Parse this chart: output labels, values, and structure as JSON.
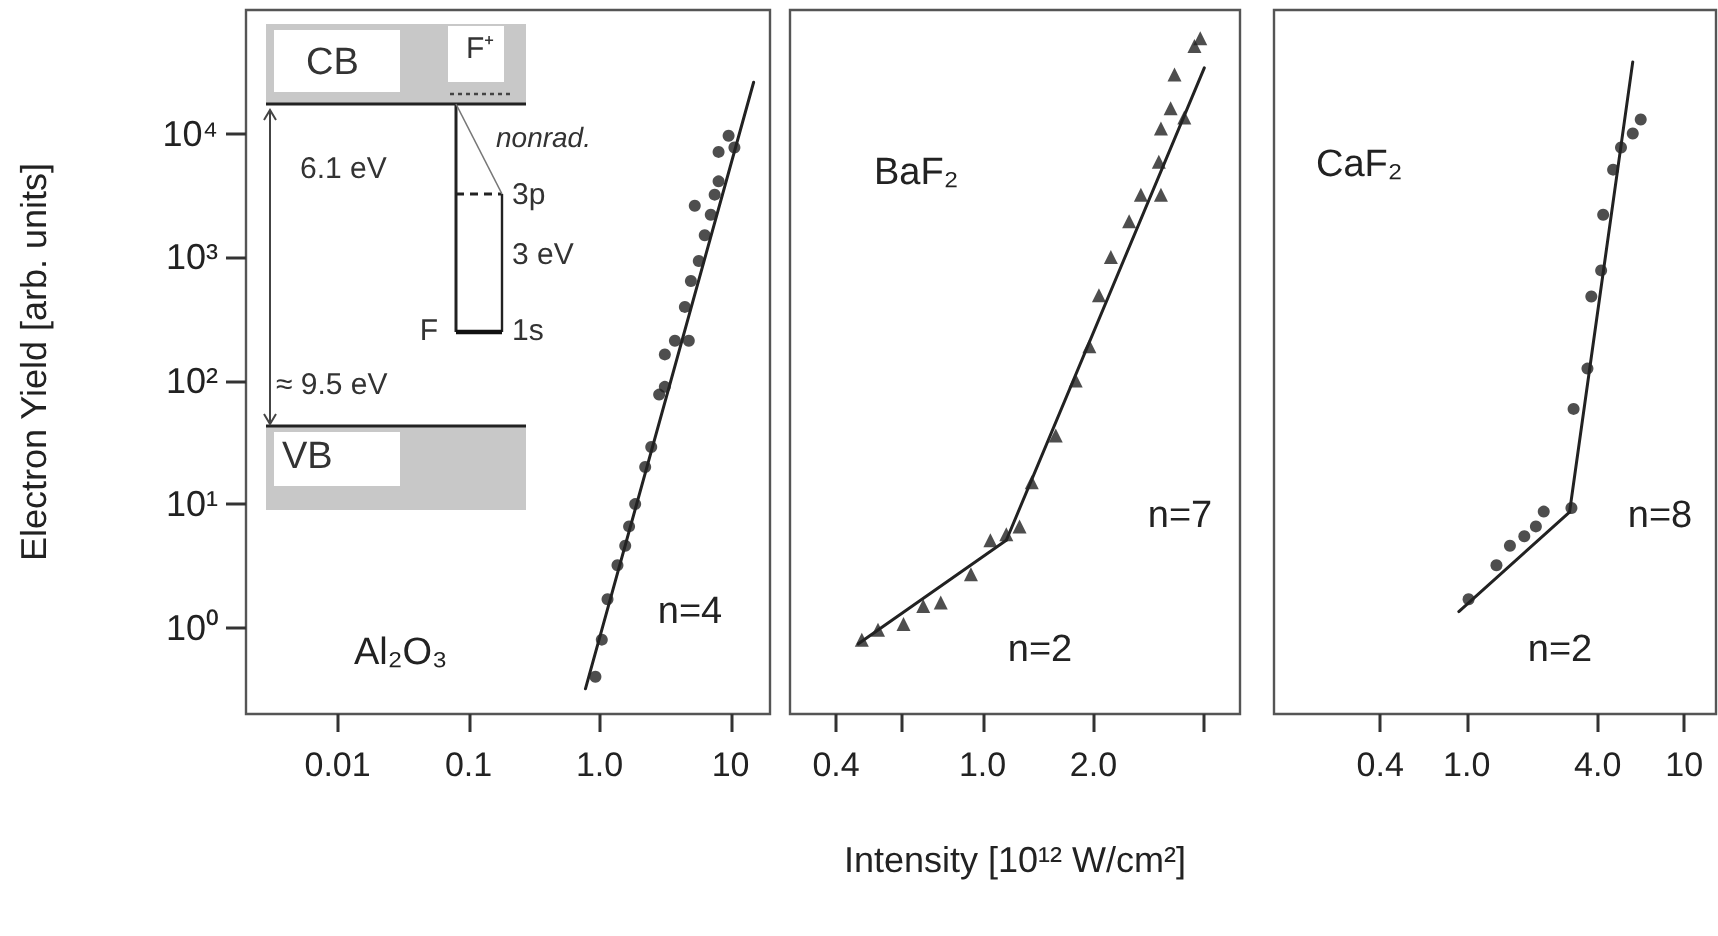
{
  "chart_data": [
    {
      "type": "scatter",
      "title": "Al₂O₃",
      "ylabel": "Electron Yield [arb. units]",
      "log": "xy",
      "xlim": [
        0.002,
        20
      ],
      "ylim": [
        0.2,
        100000
      ],
      "xticks": [
        0.01,
        0.1,
        {
          "value": 1,
          "label": "1.0"
        },
        10
      ],
      "yticks": [
        {
          "value": 1,
          "label": "10⁰"
        },
        {
          "value": 10,
          "label": "10¹"
        },
        {
          "value": 100,
          "label": "10²"
        },
        {
          "value": 1000,
          "label": "10³"
        },
        {
          "value": 10000,
          "label": "10⁴"
        }
      ],
      "series": [
        {
          "marker": "circle",
          "color": "#222222",
          "x": [
            0.93,
            1.04,
            1.15,
            1.37,
            1.57,
            1.68,
            1.87,
            2.23,
            2.48,
            2.85,
            3.15,
            3.15,
            3.76,
            4.48,
            4.8,
            4.98,
            5.33,
            5.72,
            6.35,
            7.06,
            7.56,
            8.1,
            8.1,
            9.66,
            10.7
          ],
          "values": [
            0.4,
            0.8,
            1.7,
            3.2,
            4.6,
            6.6,
            10,
            20,
            29,
            77,
            163,
            89,
            210,
            395,
            210,
            640,
            2600,
            930,
            1500,
            2200,
            3200,
            4100,
            7100,
            9600,
            7700
          ]
        },
        {
          "type": "line",
          "marker": "none",
          "color": "#222222",
          "x": [
            0.78,
            15
          ],
          "values": [
            0.32,
            26000
          ]
        }
      ],
      "annotations": [
        "CB",
        "F⁺",
        "nonrad.",
        "6.1 eV",
        "3p",
        "3 eV",
        "F",
        "1s",
        "≈ 9.5 eV",
        "VB",
        "n=4"
      ]
    },
    {
      "type": "scatter",
      "title": "BaF₂",
      "xlabel": "Intensity [10¹² W/cm²]",
      "log": "xy",
      "tick_labels": "x",
      "xlim": [
        0.3,
        5
      ],
      "ylim": [
        0.2,
        100000
      ],
      "xticks": [
        0.4,
        {
          "value": 0.6,
          "label": null
        },
        {
          "value": 1,
          "label": "1.0"
        },
        {
          "value": 2,
          "label": "2.0"
        },
        {
          "value": 4,
          "label": null
        }
      ],
      "series": [
        {
          "marker": "triangle",
          "color": "#222222",
          "x": [
            0.47,
            0.52,
            0.61,
            0.69,
            0.77,
            0.93,
            1.05,
            1.16,
            1.26,
            1.36,
            1.58,
            1.79,
            1.95,
            2.07,
            2.23,
            2.5,
            2.69,
            3.05,
            3.01,
            3.05,
            3.24,
            3.32,
            3.53,
            3.76,
            3.9
          ],
          "values": [
            0.8,
            0.96,
            1.07,
            1.5,
            1.6,
            2.7,
            5.1,
            5.7,
            6.6,
            15,
            36,
            100,
            190,
            490,
            1000,
            1950,
            3200,
            3200,
            5900,
            11000,
            16000,
            30000,
            13500,
            51000,
            59000
          ]
        },
        {
          "type": "line",
          "marker": "none",
          "color": "#222222",
          "x": [
            0.46,
            1.16
          ],
          "values": [
            0.74,
            5.1
          ]
        },
        {
          "type": "line",
          "marker": "none",
          "color": "#222222",
          "x": [
            1.16,
            4.0
          ],
          "values": [
            5.1,
            34000
          ]
        }
      ],
      "annotations": [
        "n=7",
        "n=2"
      ]
    },
    {
      "type": "scatter",
      "title": "CaF₂",
      "log": "xy",
      "tick_labels": "x",
      "xlim": [
        0.13,
        14
      ],
      "ylim": [
        0.2,
        100000
      ],
      "xticks": [
        0.4,
        {
          "value": 1,
          "label": "1.0"
        },
        {
          "value": 4,
          "label": "4.0"
        },
        10
      ],
      "series": [
        {
          "marker": "circle",
          "color": "#222222",
          "x": [
            1.02,
            1.37,
            1.58,
            1.84,
            2.08,
            2.26,
            3.03,
            3.1,
            3.59,
            3.74,
            4.15,
            4.24,
            4.71,
            5.12,
            5.8,
            6.31
          ],
          "values": [
            1.7,
            3.2,
            4.6,
            5.5,
            6.6,
            8.7,
            9.3,
            59,
            125,
            480,
            780,
            2200,
            5100,
            7700,
            10000,
            13000
          ]
        },
        {
          "type": "line",
          "marker": "none",
          "color": "#222222",
          "x": [
            0.92,
            2.97
          ],
          "values": [
            1.35,
            8.6
          ]
        },
        {
          "type": "line",
          "marker": "none",
          "color": "#222222",
          "x": [
            2.97,
            5.8
          ],
          "values": [
            8.6,
            38000
          ]
        }
      ],
      "annotations": [
        "n=8",
        "n=2"
      ]
    }
  ]
}
